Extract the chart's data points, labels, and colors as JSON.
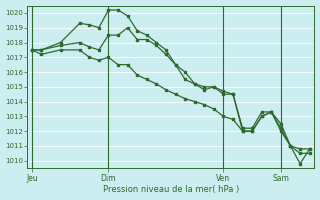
{
  "title": "Pression niveau de la mer( hPa )",
  "bg_color": "#cceef0",
  "grid_color": "#ffffff",
  "line_color": "#2d6a2d",
  "ylim": [
    1009.5,
    1020.5
  ],
  "yticks": [
    1010,
    1011,
    1012,
    1013,
    1014,
    1015,
    1016,
    1017,
    1018,
    1019,
    1020
  ],
  "xtick_labels": [
    "Jeu",
    "Dim",
    "Ven",
    "Sam"
  ],
  "xtick_positions": [
    0,
    8,
    20,
    26
  ],
  "vline_positions": [
    0,
    8,
    20,
    26
  ],
  "total_points": 30,
  "series1_x": [
    0,
    1,
    3,
    5,
    6,
    7,
    8,
    9,
    10,
    11,
    12,
    13,
    14,
    15,
    16,
    17,
    18,
    19,
    20,
    21,
    22,
    23,
    24,
    25,
    26,
    27,
    28,
    29
  ],
  "series1_y": [
    1017.5,
    1017.5,
    1018.0,
    1019.3,
    1019.2,
    1019.0,
    1020.2,
    1020.2,
    1019.8,
    1018.8,
    1018.5,
    1018.0,
    1017.5,
    1016.5,
    1016.0,
    1015.2,
    1014.8,
    1015.0,
    1014.7,
    1014.5,
    1012.2,
    1012.2,
    1013.3,
    1013.3,
    1012.5,
    1011.0,
    1010.8,
    1010.8
  ],
  "series2_x": [
    0,
    1,
    3,
    5,
    6,
    7,
    8,
    9,
    10,
    11,
    12,
    13,
    14,
    15,
    16,
    17,
    18,
    19,
    20,
    21,
    22,
    23,
    24,
    25,
    26,
    27,
    28,
    29
  ],
  "series2_y": [
    1017.5,
    1017.5,
    1017.8,
    1018.0,
    1017.7,
    1017.5,
    1018.5,
    1018.5,
    1019.0,
    1018.2,
    1018.2,
    1017.8,
    1017.2,
    1016.5,
    1015.5,
    1015.2,
    1015.0,
    1015.0,
    1014.5,
    1014.5,
    1012.0,
    1012.0,
    1013.0,
    1013.3,
    1012.2,
    1011.0,
    1010.5,
    1010.5
  ],
  "series3_x": [
    0,
    1,
    3,
    5,
    6,
    7,
    8,
    9,
    10,
    11,
    12,
    13,
    14,
    15,
    16,
    17,
    18,
    19,
    20,
    21,
    22,
    23,
    24,
    25,
    26,
    27,
    28,
    29
  ],
  "series3_y": [
    1017.5,
    1017.2,
    1017.5,
    1017.5,
    1017.0,
    1016.8,
    1017.0,
    1016.5,
    1016.5,
    1015.8,
    1015.5,
    1015.2,
    1014.8,
    1014.5,
    1014.2,
    1014.0,
    1013.8,
    1013.5,
    1013.0,
    1012.8,
    1012.0,
    1012.0,
    1013.0,
    1013.3,
    1012.0,
    1011.0,
    1009.8,
    1010.8
  ]
}
